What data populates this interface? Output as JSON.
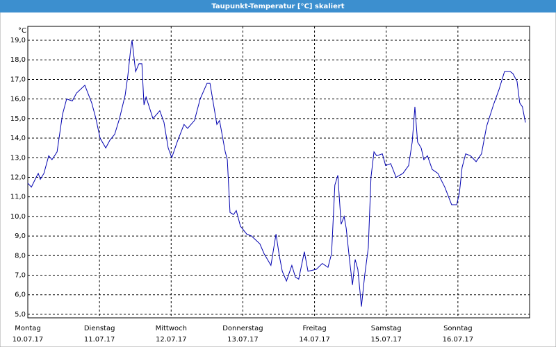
{
  "chart_data": {
    "type": "line",
    "title": "Taupunkt-Temperatur [°C] skaliert",
    "y_label": "°C",
    "x": [
      0,
      1.2,
      2.8,
      3.5,
      4.2,
      5.4,
      7.0,
      8.1,
      9.8,
      11.6,
      13.0,
      14.9,
      16.3,
      19.1,
      21.4,
      22.8,
      24.2,
      26.1,
      27.5,
      29.1,
      30.7,
      32.6,
      33.5,
      34.4,
      34.9,
      36.1,
      37.2,
      38.2,
      38.9,
      39.6,
      41.9,
      44.2,
      45.6,
      47.0,
      48.2,
      50.0,
      52.3,
      53.5,
      55.8,
      57.7,
      60.0,
      61.0,
      63.3,
      64.2,
      66.1,
      66.8,
      67.7,
      68.9,
      69.8,
      71.2,
      73.3,
      74.9,
      77.7,
      79.1,
      81.4,
      83.1,
      84.2,
      85.2,
      86.6,
      88.4,
      89.6,
      90.7,
      92.6,
      93.8,
      96.6,
      98.6,
      100.5,
      101.7,
      102.8,
      103.8,
      104.9,
      105.9,
      106.6,
      107.7,
      108.7,
      109.6,
      110.5,
      111.7,
      112.8,
      114.0,
      114.9,
      115.9,
      116.8,
      118.7,
      119.8,
      121.5,
      123.3,
      125.6,
      127.5,
      128.7,
      129.6,
      130.5,
      131.7,
      132.6,
      133.8,
      135.4,
      137.3,
      139.6,
      141.9,
      143.6,
      144.5,
      145.4,
      146.6,
      148.2,
      150.1,
      151.9,
      153.6,
      155.9,
      157.8,
      159.6,
      161.5,
      162.4,
      163.8,
      164.7,
      165.6,
      166.6
    ],
    "series": [
      {
        "name": "Taupunkt",
        "color": "#0000b0",
        "values": [
          11.7,
          11.5,
          12.0,
          12.2,
          11.9,
          12.2,
          13.1,
          12.9,
          13.3,
          15.2,
          16.0,
          15.9,
          16.3,
          16.7,
          15.8,
          15.0,
          14.0,
          13.5,
          13.9,
          14.2,
          15.0,
          16.2,
          17.2,
          18.5,
          19.0,
          17.4,
          17.8,
          17.8,
          15.7,
          16.1,
          15.0,
          15.4,
          14.8,
          13.5,
          13.0,
          13.8,
          14.7,
          14.5,
          14.9,
          16.0,
          16.8,
          16.8,
          14.7,
          14.9,
          13.3,
          12.9,
          10.2,
          10.1,
          10.3,
          9.5,
          9.1,
          9.0,
          8.6,
          8.1,
          7.5,
          9.1,
          8.0,
          7.2,
          6.7,
          7.5,
          6.9,
          6.8,
          8.2,
          7.2,
          7.3,
          7.6,
          7.4,
          8.1,
          11.6,
          12.1,
          9.6,
          10.0,
          9.4,
          7.8,
          6.5,
          7.8,
          7.3,
          5.4,
          7.0,
          8.4,
          12.0,
          13.3,
          13.1,
          13.2,
          12.6,
          12.7,
          12.0,
          12.2,
          12.6,
          13.8,
          15.6,
          13.8,
          13.5,
          12.9,
          13.1,
          12.4,
          12.2,
          11.5,
          10.6,
          10.6,
          11.2,
          12.5,
          13.2,
          13.1,
          12.8,
          13.2,
          14.6,
          15.7,
          16.5,
          17.4,
          17.4,
          17.3,
          16.9,
          15.8,
          15.6,
          14.8
        ]
      }
    ],
    "xlim": [
      0,
      168
    ],
    "xticks": [
      {
        "value": 0,
        "label": "Montag"
      },
      {
        "value": 24,
        "label": "Dienstag"
      },
      {
        "value": 48,
        "label": "Mittwoch"
      },
      {
        "value": 72,
        "label": "Donnerstag"
      },
      {
        "value": 96,
        "label": "Freitag"
      },
      {
        "value": 120,
        "label": "Samstag"
      },
      {
        "value": 144,
        "label": "Sonntag"
      }
    ],
    "xtick_dates": [
      "10.07.17",
      "11.07.17",
      "12.07.17",
      "13.07.17",
      "14.07.17",
      "15.07.17",
      "16.07.17"
    ],
    "ylim": [
      4.82,
      19.71
    ],
    "yticks": [
      {
        "value": 5,
        "label": "5,0"
      },
      {
        "value": 6,
        "label": "6,0"
      },
      {
        "value": 7,
        "label": "7,0"
      },
      {
        "value": 8,
        "label": "8,0"
      },
      {
        "value": 9,
        "label": "9,0"
      },
      {
        "value": 10,
        "label": "10,0"
      },
      {
        "value": 11,
        "label": "11,0"
      },
      {
        "value": 12,
        "label": "12,0"
      },
      {
        "value": 13,
        "label": "13,0"
      },
      {
        "value": 14,
        "label": "14,0"
      },
      {
        "value": 15,
        "label": "15,0"
      },
      {
        "value": 16,
        "label": "16,0"
      },
      {
        "value": 17,
        "label": "17,0"
      },
      {
        "value": 18,
        "label": "18,0"
      },
      {
        "value": 19,
        "label": "19,0"
      }
    ],
    "grid": true
  }
}
